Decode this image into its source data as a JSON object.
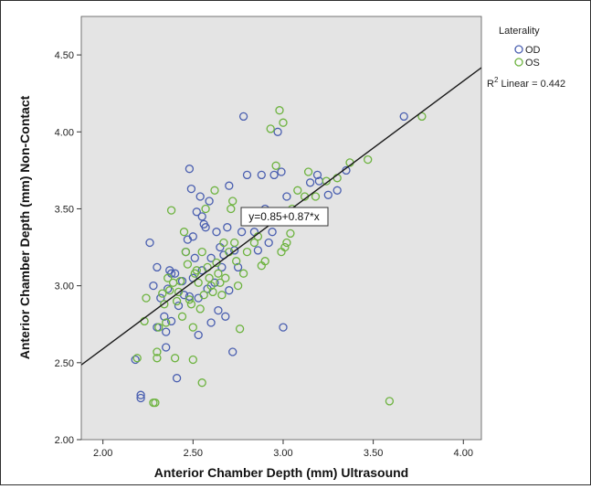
{
  "chart_data": {
    "type": "scatter",
    "xlabel": "Anterior Chamber Depth (mm) Ultrasound",
    "ylabel": "Anterior Chamber Depth (mm) Non-Contact",
    "xlim": [
      1.88,
      4.1
    ],
    "ylim": [
      2.0,
      4.75
    ],
    "xticks": [
      "2.00",
      "2.50",
      "3.00",
      "3.50",
      "4.00"
    ],
    "yticks": [
      "2.00",
      "2.50",
      "3.00",
      "3.50",
      "4.00",
      "4.50"
    ],
    "legend": {
      "title": "Laterality",
      "placement": "right",
      "entries": [
        "OD",
        "OS"
      ]
    },
    "fit_line": {
      "equation": "y=0.85+0.87*x",
      "intercept": 0.85,
      "slope": 0.87,
      "r2_prefix": "R",
      "r2_sup": "2",
      "r2_suffix": " Linear = 0.442"
    },
    "colors": {
      "OD": "#4a5fb0",
      "OS": "#6db33f",
      "plot_bg": "#e4e4e4",
      "line": "#1a1a1a"
    },
    "series": [
      {
        "name": "OD",
        "points": [
          [
            2.18,
            2.52
          ],
          [
            2.21,
            2.29
          ],
          [
            2.21,
            2.27
          ],
          [
            2.26,
            3.28
          ],
          [
            2.28,
            3.0
          ],
          [
            2.3,
            2.73
          ],
          [
            2.3,
            3.12
          ],
          [
            2.32,
            2.92
          ],
          [
            2.34,
            2.8
          ],
          [
            2.35,
            2.6
          ],
          [
            2.35,
            2.7
          ],
          [
            2.36,
            2.98
          ],
          [
            2.37,
            3.1
          ],
          [
            2.38,
            3.08
          ],
          [
            2.38,
            2.77
          ],
          [
            2.4,
            3.08
          ],
          [
            2.41,
            2.4
          ],
          [
            2.42,
            2.87
          ],
          [
            2.44,
            3.03
          ],
          [
            2.45,
            2.94
          ],
          [
            2.46,
            3.22
          ],
          [
            2.47,
            3.3
          ],
          [
            2.48,
            3.76
          ],
          [
            2.48,
            2.93
          ],
          [
            2.49,
            3.63
          ],
          [
            2.5,
            3.32
          ],
          [
            2.5,
            3.05
          ],
          [
            2.51,
            3.18
          ],
          [
            2.52,
            3.48
          ],
          [
            2.53,
            2.92
          ],
          [
            2.53,
            2.68
          ],
          [
            2.54,
            3.58
          ],
          [
            2.55,
            3.45
          ],
          [
            2.55,
            3.1
          ],
          [
            2.56,
            3.4
          ],
          [
            2.57,
            3.38
          ],
          [
            2.58,
            2.98
          ],
          [
            2.59,
            3.55
          ],
          [
            2.6,
            3.18
          ],
          [
            2.6,
            2.76
          ],
          [
            2.62,
            3.02
          ],
          [
            2.63,
            3.35
          ],
          [
            2.64,
            2.84
          ],
          [
            2.65,
            3.25
          ],
          [
            2.66,
            3.12
          ],
          [
            2.67,
            3.2
          ],
          [
            2.68,
            2.8
          ],
          [
            2.69,
            3.38
          ],
          [
            2.7,
            3.65
          ],
          [
            2.7,
            2.97
          ],
          [
            2.72,
            2.57
          ],
          [
            2.73,
            3.23
          ],
          [
            2.75,
            3.12
          ],
          [
            2.77,
            3.35
          ],
          [
            2.78,
            4.1
          ],
          [
            2.8,
            3.72
          ],
          [
            2.82,
            3.48
          ],
          [
            2.84,
            3.35
          ],
          [
            2.86,
            3.23
          ],
          [
            2.88,
            3.72
          ],
          [
            2.9,
            3.5
          ],
          [
            2.92,
            3.28
          ],
          [
            2.94,
            3.35
          ],
          [
            2.95,
            3.72
          ],
          [
            2.97,
            4.0
          ],
          [
            2.99,
            3.74
          ],
          [
            3.0,
            2.73
          ],
          [
            3.02,
            3.58
          ],
          [
            3.15,
            3.67
          ],
          [
            3.19,
            3.72
          ],
          [
            3.2,
            3.68
          ],
          [
            3.25,
            3.59
          ],
          [
            3.3,
            3.62
          ],
          [
            3.35,
            3.75
          ],
          [
            3.67,
            4.1
          ]
        ]
      },
      {
        "name": "OS",
        "points": [
          [
            2.19,
            2.53
          ],
          [
            2.23,
            2.77
          ],
          [
            2.24,
            2.92
          ],
          [
            2.28,
            2.24
          ],
          [
            2.29,
            2.24
          ],
          [
            2.3,
            2.53
          ],
          [
            2.3,
            2.57
          ],
          [
            2.31,
            2.73
          ],
          [
            2.33,
            2.95
          ],
          [
            2.34,
            2.88
          ],
          [
            2.35,
            2.76
          ],
          [
            2.36,
            3.05
          ],
          [
            2.37,
            2.97
          ],
          [
            2.38,
            3.49
          ],
          [
            2.39,
            3.02
          ],
          [
            2.4,
            2.53
          ],
          [
            2.41,
            2.9
          ],
          [
            2.42,
            2.96
          ],
          [
            2.43,
            3.03
          ],
          [
            2.44,
            2.8
          ],
          [
            2.45,
            3.35
          ],
          [
            2.46,
            3.22
          ],
          [
            2.47,
            3.14
          ],
          [
            2.48,
            2.91
          ],
          [
            2.49,
            2.88
          ],
          [
            2.5,
            2.52
          ],
          [
            2.5,
            2.73
          ],
          [
            2.51,
            3.08
          ],
          [
            2.52,
            3.1
          ],
          [
            2.53,
            3.02
          ],
          [
            2.54,
            2.85
          ],
          [
            2.55,
            2.37
          ],
          [
            2.55,
            3.22
          ],
          [
            2.56,
            2.94
          ],
          [
            2.57,
            3.5
          ],
          [
            2.58,
            3.12
          ],
          [
            2.59,
            3.05
          ],
          [
            2.6,
            3.0
          ],
          [
            2.61,
            2.96
          ],
          [
            2.62,
            3.62
          ],
          [
            2.63,
            3.15
          ],
          [
            2.64,
            3.08
          ],
          [
            2.65,
            3.02
          ],
          [
            2.66,
            2.94
          ],
          [
            2.67,
            3.28
          ],
          [
            2.68,
            3.05
          ],
          [
            2.7,
            3.22
          ],
          [
            2.71,
            3.5
          ],
          [
            2.72,
            3.55
          ],
          [
            2.73,
            3.28
          ],
          [
            2.74,
            3.16
          ],
          [
            2.75,
            3.0
          ],
          [
            2.76,
            2.72
          ],
          [
            2.78,
            3.08
          ],
          [
            2.8,
            3.22
          ],
          [
            2.82,
            3.45
          ],
          [
            2.84,
            3.28
          ],
          [
            2.86,
            3.32
          ],
          [
            2.88,
            3.13
          ],
          [
            2.9,
            3.16
          ],
          [
            2.93,
            4.02
          ],
          [
            2.96,
            3.78
          ],
          [
            2.98,
            4.14
          ],
          [
            2.99,
            3.22
          ],
          [
            3.0,
            4.06
          ],
          [
            3.01,
            3.25
          ],
          [
            3.02,
            3.28
          ],
          [
            3.04,
            3.34
          ],
          [
            3.05,
            3.5
          ],
          [
            3.06,
            3.42
          ],
          [
            3.08,
            3.62
          ],
          [
            3.12,
            3.58
          ],
          [
            3.14,
            3.74
          ],
          [
            3.18,
            3.58
          ],
          [
            3.21,
            3.48
          ],
          [
            3.24,
            3.68
          ],
          [
            3.3,
            3.7
          ],
          [
            3.37,
            3.8
          ],
          [
            3.47,
            3.82
          ],
          [
            3.59,
            2.25
          ],
          [
            3.77,
            4.1
          ]
        ]
      }
    ]
  }
}
